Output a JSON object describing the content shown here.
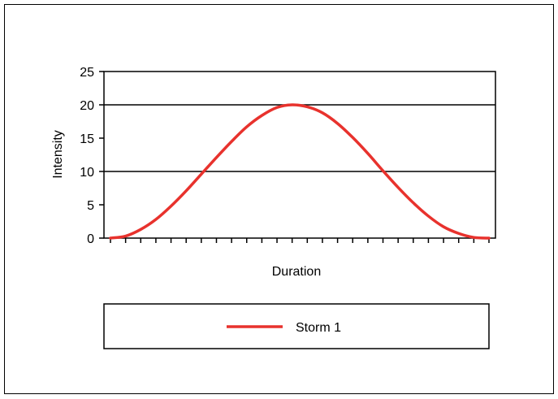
{
  "chart_data": {
    "type": "line",
    "title": "",
    "xlabel": "Duration",
    "ylabel": "Intensity",
    "ylim": [
      0,
      25
    ],
    "yticks": [
      "0",
      "5",
      "10",
      "15",
      "20",
      "25"
    ],
    "x_tick_count": 26,
    "gridlines_y": [
      10,
      20
    ],
    "legend": {
      "position": "bottom",
      "entries": [
        "Storm 1"
      ]
    },
    "series": [
      {
        "name": "Storm 1",
        "color": "#e8322d",
        "x": [
          0,
          1,
          2,
          3,
          4,
          5,
          6,
          7,
          8,
          9,
          10,
          11,
          12,
          13,
          14,
          15,
          16,
          17,
          18,
          19,
          20,
          21,
          22,
          23,
          24,
          25
        ],
        "values": [
          0,
          0.3,
          1.3,
          2.8,
          4.8,
          7.1,
          9.6,
          12.1,
          14.5,
          16.7,
          18.4,
          19.6,
          20.0,
          19.7,
          18.8,
          17.2,
          15.1,
          12.7,
          10.1,
          7.6,
          5.3,
          3.3,
          1.7,
          0.7,
          0.1,
          0
        ]
      }
    ]
  }
}
